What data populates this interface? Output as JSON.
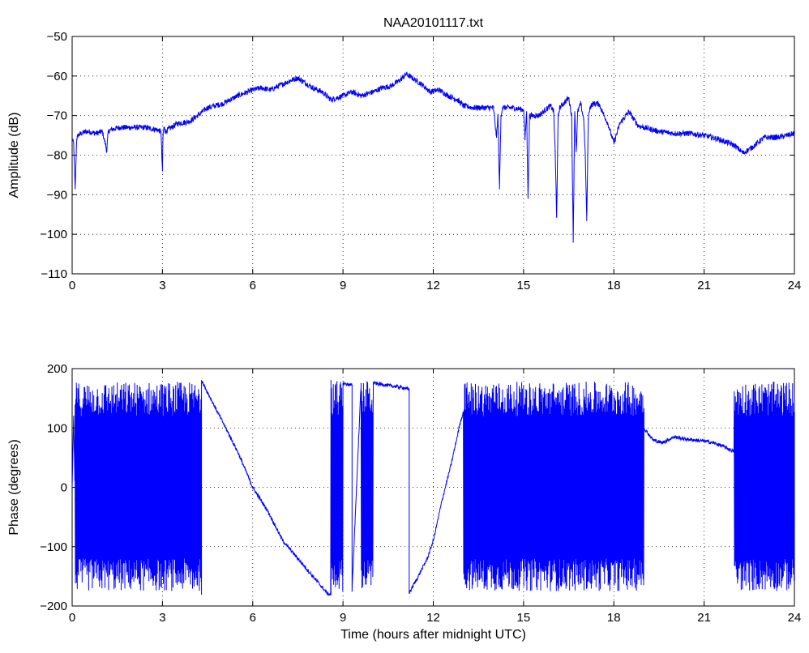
{
  "chart_data": [
    {
      "type": "line",
      "title": "NAA20101117.txt",
      "xlabel": "",
      "ylabel": "Amplitude (dB)",
      "xlim": [
        0,
        24
      ],
      "ylim": [
        -110,
        -50
      ],
      "xticks": [
        0,
        3,
        6,
        9,
        12,
        15,
        18,
        21,
        24
      ],
      "yticks": [
        -50,
        -60,
        -70,
        -80,
        -90,
        -100,
        -110
      ],
      "grid": true,
      "color": "#0000ff",
      "series": [
        {
          "x": [
            0,
            0.05,
            0.1,
            0.15,
            0.2,
            0.3,
            0.5,
            0.8,
            1.0,
            1.1,
            1.15,
            1.2,
            1.3,
            1.6,
            2.0,
            2.4,
            2.8,
            2.95,
            3.0,
            3.02,
            3.05,
            3.1,
            3.5,
            3.9,
            4.0,
            4.5,
            5.0,
            5.5,
            6.0,
            6.3,
            6.6,
            7.0,
            7.3,
            7.5,
            7.8,
            8.0,
            8.3,
            8.6,
            8.8,
            9.0,
            9.3,
            9.6,
            10.0,
            10.3,
            10.6,
            10.9,
            11.1,
            11.3,
            11.6,
            11.9,
            12.2,
            12.5,
            12.8,
            13.0,
            13.3,
            13.6,
            14.0,
            14.1,
            14.15,
            14.2,
            14.25,
            14.3,
            14.6,
            15.0,
            15.05,
            15.1,
            15.15,
            15.2,
            15.5,
            15.9,
            16.0,
            16.05,
            16.1,
            16.15,
            16.2,
            16.5,
            16.6,
            16.65,
            16.7,
            16.75,
            16.8,
            16.9,
            17.0,
            17.05,
            17.1,
            17.15,
            17.2,
            17.3,
            17.5,
            17.8,
            18.0,
            18.2,
            18.5,
            18.8,
            19.0,
            19.5,
            20.0,
            20.5,
            21.0,
            21.5,
            22.0,
            22.3,
            22.6,
            23.0,
            23.5,
            24.0
          ],
          "y": [
            -76,
            -77,
            -88.5,
            -76,
            -75,
            -74.5,
            -74,
            -74.5,
            -74,
            -77,
            -79,
            -74,
            -73.5,
            -73,
            -73,
            -73,
            -73.5,
            -74,
            -84,
            -75,
            -73,
            -74,
            -72,
            -71.5,
            -71,
            -68,
            -67,
            -65,
            -63.5,
            -63,
            -63.5,
            -62,
            -61,
            -60.5,
            -62,
            -63,
            -64,
            -66,
            -65.5,
            -65,
            -64,
            -65,
            -64,
            -63,
            -62.5,
            -61,
            -59.5,
            -60.5,
            -62,
            -64,
            -63.5,
            -65,
            -66,
            -67.5,
            -68,
            -68,
            -68,
            -75.5,
            -70,
            -88.5,
            -70,
            -68,
            -68,
            -68.5,
            -76,
            -69,
            -90.5,
            -70,
            -70,
            -67.5,
            -69,
            -79,
            -95.5,
            -70,
            -68,
            -65.5,
            -70,
            -102,
            -69,
            -79,
            -69,
            -67,
            -71,
            -80,
            -96.5,
            -71,
            -68,
            -67,
            -67,
            -72,
            -77,
            -72,
            -69,
            -72.5,
            -73,
            -74,
            -74.5,
            -74.5,
            -75,
            -76,
            -77.5,
            -79.5,
            -78,
            -75.5,
            -75.5,
            -74.5
          ]
        }
      ]
    },
    {
      "type": "line",
      "title": "",
      "xlabel": "Time (hours after midnight UTC)",
      "ylabel": "Phase (degrees)",
      "xlim": [
        0,
        24
      ],
      "ylim": [
        -200,
        200
      ],
      "xticks": [
        0,
        3,
        6,
        9,
        12,
        15,
        18,
        21,
        24
      ],
      "yticks": [
        200,
        100,
        0,
        -100,
        -200
      ],
      "grid": true,
      "color": "#0000ff",
      "series": [
        {
          "x": [
            0,
            0.05,
            0.1,
            0.2,
            0.5,
            0.8,
            1.0,
            1.3,
            1.6,
            2.0,
            2.5,
            3.0,
            3.5,
            4.0,
            4.3,
            4.3,
            4.6,
            5.0,
            5.5,
            6.0,
            6.5,
            7.0,
            7.5,
            8.0,
            8.5,
            8.6,
            8.6,
            8.8,
            9.0,
            9.3,
            9.3,
            9.6,
            9.8,
            9.8,
            10.2,
            10.6,
            11.0,
            11.2,
            11.2,
            11.5,
            11.8,
            12.0,
            12.3,
            12.6,
            12.9,
            13.2,
            13.5,
            14.0,
            15.0,
            16.0,
            17.0,
            17.5,
            18.0,
            18.3,
            18.6,
            19.0,
            19.3,
            19.6,
            19.8,
            20.0,
            20.3,
            20.6,
            21.0,
            21.3,
            21.6,
            22.0,
            22.3,
            22.5,
            23.0,
            23.5,
            24.0
          ],
          "y": [
            0,
            120,
            -20,
            -110,
            -40,
            -55,
            -75,
            -90,
            -110,
            -130,
            -140,
            -150,
            -160,
            -170,
            -180,
            180,
            150,
            110,
            60,
            0,
            -40,
            -90,
            -120,
            -150,
            -180,
            -180,
            180,
            178,
            175,
            172,
            -175,
            175,
            170,
            178,
            174,
            171,
            168,
            165,
            -178,
            -150,
            -120,
            -90,
            -20,
            40,
            110,
            160,
            170,
            172,
            170,
            168,
            165,
            160,
            150,
            140,
            130,
            100,
            80,
            75,
            80,
            85,
            82,
            80,
            78,
            75,
            70,
            60,
            30,
            -20,
            -30,
            -40,
            -50
          ],
          "wrap_segments": [
            [
              0.1,
              4.3
            ],
            [
              8.6,
              9.0
            ],
            [
              9.6,
              10.0
            ],
            [
              13.0,
              19.0
            ],
            [
              22.0,
              24.0
            ]
          ]
        }
      ]
    }
  ]
}
